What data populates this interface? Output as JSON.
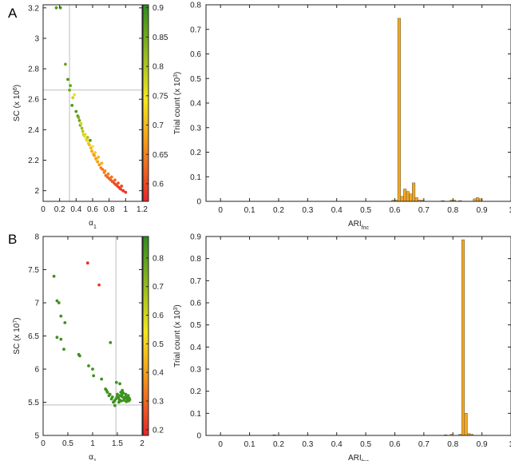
{
  "panel_labels": [
    "A",
    "B"
  ],
  "chart_data": [
    {
      "panel": "A",
      "type": "scatter",
      "xlabel": "α1",
      "ylabel": "SC (x 10⁶)",
      "xlim": [
        0,
        1.2
      ],
      "ylim": [
        1.93,
        3.22
      ],
      "xticks": [
        "0",
        "0.2",
        "0.4",
        "0.6",
        "0.8",
        "1",
        "1.2"
      ],
      "yticks": [
        "2",
        "2.2",
        "2.4",
        "2.6",
        "2.8",
        "3",
        "3.2"
      ],
      "colorbar": {
        "min": 0.57,
        "max": 0.905,
        "ticks": [
          "0.6",
          "0.65",
          "0.7",
          "0.75",
          "0.8",
          "0.85",
          "0.9"
        ],
        "colors": [
          "#e8252b",
          "#f49a1a",
          "#f5e71c",
          "#2e8b1f"
        ]
      },
      "reference_lines": {
        "x": 0.32,
        "y": 2.66
      },
      "points": [
        [
          0.16,
          3.2,
          0.88
        ],
        [
          0.21,
          3.2,
          0.88
        ],
        [
          0.27,
          2.83,
          0.86
        ],
        [
          0.3,
          2.73,
          0.88
        ],
        [
          0.33,
          2.69,
          0.86
        ],
        [
          0.32,
          2.66,
          0.85
        ],
        [
          0.36,
          2.61,
          0.78
        ],
        [
          0.38,
          2.63,
          0.75
        ],
        [
          0.35,
          2.56,
          0.88
        ],
        [
          0.4,
          2.52,
          0.88
        ],
        [
          0.42,
          2.49,
          0.87
        ],
        [
          0.44,
          2.46,
          0.86
        ],
        [
          0.45,
          2.43,
          0.84
        ],
        [
          0.47,
          2.41,
          0.82
        ],
        [
          0.48,
          2.39,
          0.8
        ],
        [
          0.49,
          2.37,
          0.78
        ],
        [
          0.5,
          2.36,
          0.77
        ],
        [
          0.52,
          2.34,
          0.74
        ],
        [
          0.53,
          2.33,
          0.72
        ],
        [
          0.55,
          2.31,
          0.71
        ],
        [
          0.56,
          2.3,
          0.7
        ],
        [
          0.58,
          2.28,
          0.69
        ],
        [
          0.59,
          2.26,
          0.68
        ],
        [
          0.61,
          2.24,
          0.69
        ],
        [
          0.62,
          2.23,
          0.67
        ],
        [
          0.64,
          2.21,
          0.66
        ],
        [
          0.66,
          2.19,
          0.66
        ],
        [
          0.68,
          2.17,
          0.67
        ],
        [
          0.7,
          2.15,
          0.65
        ],
        [
          0.72,
          2.14,
          0.64
        ],
        [
          0.74,
          2.12,
          0.64
        ],
        [
          0.76,
          2.1,
          0.63
        ],
        [
          0.78,
          2.09,
          0.63
        ],
        [
          0.8,
          2.08,
          0.62
        ],
        [
          0.82,
          2.07,
          0.62
        ],
        [
          0.84,
          2.06,
          0.61
        ],
        [
          0.86,
          2.05,
          0.61
        ],
        [
          0.88,
          2.04,
          0.6
        ],
        [
          0.9,
          2.03,
          0.6
        ],
        [
          0.92,
          2.02,
          0.59
        ],
        [
          0.94,
          2.01,
          0.59
        ],
        [
          0.97,
          2.0,
          0.58
        ],
        [
          1.0,
          1.99,
          0.58
        ],
        [
          0.46,
          2.44,
          0.77
        ],
        [
          0.51,
          2.37,
          0.73
        ],
        [
          0.57,
          2.33,
          0.88
        ],
        [
          0.63,
          2.25,
          0.72
        ],
        [
          0.67,
          2.22,
          0.7
        ],
        [
          0.71,
          2.18,
          0.69
        ],
        [
          0.75,
          2.13,
          0.66
        ],
        [
          0.79,
          2.11,
          0.65
        ],
        [
          0.83,
          2.09,
          0.64
        ],
        [
          0.87,
          2.07,
          0.63
        ],
        [
          0.91,
          2.05,
          0.61
        ],
        [
          0.95,
          2.03,
          0.6
        ],
        [
          0.6,
          2.29,
          0.74
        ],
        [
          0.54,
          2.35,
          0.8
        ],
        [
          0.43,
          2.48,
          0.84
        ],
        [
          0.65,
          2.2,
          0.71
        ]
      ]
    },
    {
      "panel": "A",
      "type": "bar",
      "xlabel": "ARIfnc",
      "ylabel": "Trial count (x 10³)",
      "xlim": [
        -0.05,
        1.0
      ],
      "ylim": [
        0,
        0.8
      ],
      "xticks": [
        "0",
        "0.1",
        "0.2",
        "0.3",
        "0.4",
        "0.5",
        "0.6",
        "0.7",
        "0.8",
        "0.9",
        "1"
      ],
      "yticks": [
        "0",
        "0.1",
        "0.2",
        "0.3",
        "0.4",
        "0.5",
        "0.6",
        "0.7",
        "0.8"
      ],
      "bin_width": 0.01,
      "bins": [
        [
          0.59,
          0.005
        ],
        [
          0.6,
          0.005
        ],
        [
          0.61,
          0.745
        ],
        [
          0.62,
          0.02
        ],
        [
          0.63,
          0.05
        ],
        [
          0.64,
          0.04
        ],
        [
          0.65,
          0.03
        ],
        [
          0.66,
          0.075
        ],
        [
          0.67,
          0.015
        ],
        [
          0.68,
          0.005
        ],
        [
          0.69,
          0.005
        ],
        [
          0.76,
          0.003
        ],
        [
          0.79,
          0.005
        ],
        [
          0.8,
          0.005
        ],
        [
          0.82,
          0.003
        ],
        [
          0.87,
          0.01
        ],
        [
          0.88,
          0.015
        ],
        [
          0.89,
          0.01
        ]
      ]
    },
    {
      "panel": "B",
      "type": "scatter",
      "xlabel": "α1",
      "ylabel": "SC (x 10⁷)",
      "xlim": [
        0,
        2
      ],
      "ylim": [
        5,
        8
      ],
      "xticks": [
        "0",
        "0.5",
        "1",
        "1.5",
        "2"
      ],
      "yticks": [
        "5",
        "5.5",
        "6",
        "6.5",
        "7",
        "7.5",
        "8"
      ],
      "colorbar": {
        "min": 0.18,
        "max": 0.875,
        "ticks": [
          "0.2",
          "0.3",
          "0.4",
          "0.5",
          "0.6",
          "0.7",
          "0.8"
        ],
        "colors": [
          "#e8252b",
          "#f49a1a",
          "#f5e71c",
          "#2e8b1f"
        ]
      },
      "reference_lines": {
        "x": 1.47,
        "y": 5.46
      },
      "points": [
        [
          0.9,
          7.6,
          0.2
        ],
        [
          1.13,
          7.27,
          0.22
        ],
        [
          0.22,
          7.4,
          0.85
        ],
        [
          0.28,
          7.03,
          0.85
        ],
        [
          0.32,
          7.0,
          0.85
        ],
        [
          0.36,
          6.8,
          0.85
        ],
        [
          0.44,
          6.7,
          0.85
        ],
        [
          0.28,
          6.48,
          0.85
        ],
        [
          0.36,
          6.45,
          0.85
        ],
        [
          0.42,
          6.3,
          0.85
        ],
        [
          0.72,
          6.22,
          0.85
        ],
        [
          0.74,
          6.2,
          0.85
        ],
        [
          1.36,
          6.4,
          0.85
        ],
        [
          0.92,
          6.05,
          0.85
        ],
        [
          1.0,
          6.0,
          0.85
        ],
        [
          1.02,
          5.9,
          0.85
        ],
        [
          1.18,
          5.85,
          0.85
        ],
        [
          1.26,
          5.7,
          0.85
        ],
        [
          1.3,
          5.65,
          0.85
        ],
        [
          1.33,
          5.6,
          0.85
        ],
        [
          1.38,
          5.55,
          0.85
        ],
        [
          1.42,
          5.5,
          0.85
        ],
        [
          1.45,
          5.45,
          0.85
        ],
        [
          1.48,
          5.8,
          0.85
        ],
        [
          1.55,
          5.78,
          0.85
        ],
        [
          1.5,
          5.62,
          0.85
        ],
        [
          1.55,
          5.6,
          0.85
        ],
        [
          1.6,
          5.58,
          0.85
        ],
        [
          1.65,
          5.57,
          0.85
        ],
        [
          1.7,
          5.55,
          0.85
        ],
        [
          1.75,
          5.54,
          0.85
        ],
        [
          1.52,
          5.57,
          0.85
        ],
        [
          1.57,
          5.65,
          0.85
        ],
        [
          1.62,
          5.64,
          0.85
        ],
        [
          1.67,
          5.62,
          0.85
        ],
        [
          1.72,
          5.6,
          0.85
        ],
        [
          1.47,
          5.55,
          0.85
        ],
        [
          1.58,
          5.52,
          0.85
        ],
        [
          1.63,
          5.53,
          0.85
        ],
        [
          1.68,
          5.51,
          0.85
        ],
        [
          1.73,
          5.52,
          0.85
        ],
        [
          1.53,
          5.5,
          0.85
        ],
        [
          1.6,
          5.68,
          0.85
        ],
        [
          1.66,
          5.58,
          0.85
        ],
        [
          1.4,
          5.58,
          0.85
        ],
        [
          1.35,
          5.62,
          0.85
        ],
        [
          1.28,
          5.68,
          0.85
        ],
        [
          1.44,
          5.52,
          0.85
        ],
        [
          1.49,
          5.58,
          0.85
        ],
        [
          1.54,
          5.54,
          0.85
        ],
        [
          1.59,
          5.61,
          0.85
        ],
        [
          1.64,
          5.55,
          0.85
        ],
        [
          1.69,
          5.57,
          0.85
        ],
        [
          1.74,
          5.56,
          0.85
        ]
      ]
    },
    {
      "panel": "B",
      "type": "bar",
      "xlabel": "ARIfnc",
      "ylabel": "Trial count (x 10³)",
      "xlim": [
        -0.05,
        1.0
      ],
      "ylim": [
        0,
        0.9
      ],
      "xticks": [
        "0",
        "0.1",
        "0.2",
        "0.3",
        "0.4",
        "0.5",
        "0.6",
        "0.7",
        "0.8",
        "0.9",
        "1"
      ],
      "yticks": [
        "0",
        "0.1",
        "0.2",
        "0.3",
        "0.4",
        "0.5",
        "0.6",
        "0.7",
        "0.8",
        "0.9"
      ],
      "bin_width": 0.01,
      "bins": [
        [
          0.18,
          0.003
        ],
        [
          0.77,
          0.003
        ],
        [
          0.79,
          0.005
        ],
        [
          0.82,
          0.005
        ],
        [
          0.83,
          0.885
        ],
        [
          0.84,
          0.1
        ],
        [
          0.85,
          0.008
        ],
        [
          0.86,
          0.005
        ]
      ]
    }
  ]
}
